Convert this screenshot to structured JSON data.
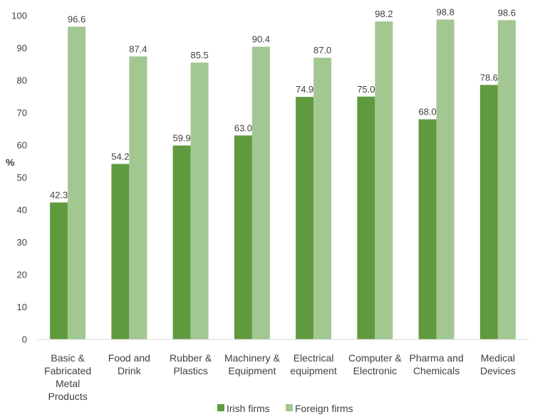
{
  "chart_data": {
    "type": "bar",
    "title": "",
    "xlabel": "",
    "ylabel": "%",
    "ylim": [
      0,
      100
    ],
    "yticks": [
      0,
      10,
      20,
      30,
      40,
      50,
      60,
      70,
      80,
      90,
      100
    ],
    "grid": false,
    "legend_position": "bottom",
    "categories": [
      [
        "Basic &",
        "Fabricated",
        "Metal",
        "Products"
      ],
      [
        "Food and",
        "Drink"
      ],
      [
        "Rubber &",
        "Plastics"
      ],
      [
        "Machinery &",
        "Equipment"
      ],
      [
        "Electrical",
        "equipment"
      ],
      [
        "Computer &",
        "Electronic"
      ],
      [
        "Pharma and",
        "Chemicals"
      ],
      [
        "Medical",
        "Devices"
      ]
    ],
    "series": [
      {
        "name": "Irish firms",
        "color": "#5f9a3f",
        "values": [
          42.3,
          54.2,
          59.9,
          63.0,
          74.9,
          75.0,
          68.0,
          78.6
        ],
        "labels": [
          "42.3",
          "54.2",
          "59.9",
          "63.0",
          "74.9",
          "75.0",
          "68.0",
          "78.6"
        ]
      },
      {
        "name": "Foreign firms",
        "color": "#a2c791",
        "values": [
          96.6,
          87.4,
          85.5,
          90.4,
          87.0,
          98.2,
          98.8,
          98.6
        ],
        "labels": [
          "96.6",
          "87.4",
          "85.5",
          "90.4",
          "87.0",
          "98.2",
          "98.8",
          "98.6"
        ]
      }
    ]
  }
}
